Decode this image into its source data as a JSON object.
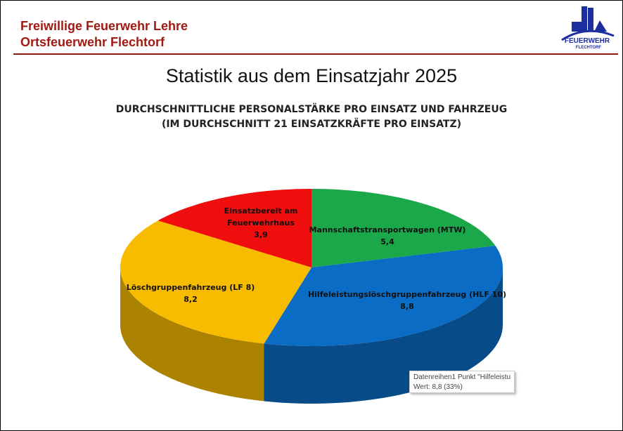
{
  "header": {
    "line1": "Freiwillige Feuerwehr Lehre",
    "line2": "Ortsfeuerwehr Flechtorf",
    "logo_text": "FEUERWEHR FLECHTORF"
  },
  "title": "Statistik aus dem Einsatzjahr 2025",
  "chart_data": {
    "type": "pie",
    "style": "3d",
    "title": "DURCHSCHNITTLICHE PERSONALSTÄRKE PRO EINSATZ UND FAHRZEUG",
    "subtitle": "(IM DURCHSCHNITT 21 EINSATZKRÄFTE PRO EINSATZ)",
    "slices": [
      {
        "label": [
          "Mannschaftstransportwagen (MTW)"
        ],
        "value": 5.4,
        "value_label": "5,4",
        "color": "#1aa84a"
      },
      {
        "label": [
          "Hilfeleistungslöschgruppenfahrzeug (HLF 10)"
        ],
        "value": 8.8,
        "value_label": "8,8",
        "color": "#0a6cc4"
      },
      {
        "label": [
          "Löschgruppenfahrzeug (LF 8)"
        ],
        "value": 8.2,
        "value_label": "8,2",
        "color": "#f7bc00"
      },
      {
        "label": [
          "Einsatzbereit am",
          "Feuerwehrhaus"
        ],
        "value": 3.9,
        "value_label": "3,9",
        "color": "#f00d0d"
      }
    ]
  },
  "tooltip": {
    "line1": "Datenreihen1 Punkt \"Hilfeleistu",
    "line2": "Wert: 8,8 (33%)"
  }
}
